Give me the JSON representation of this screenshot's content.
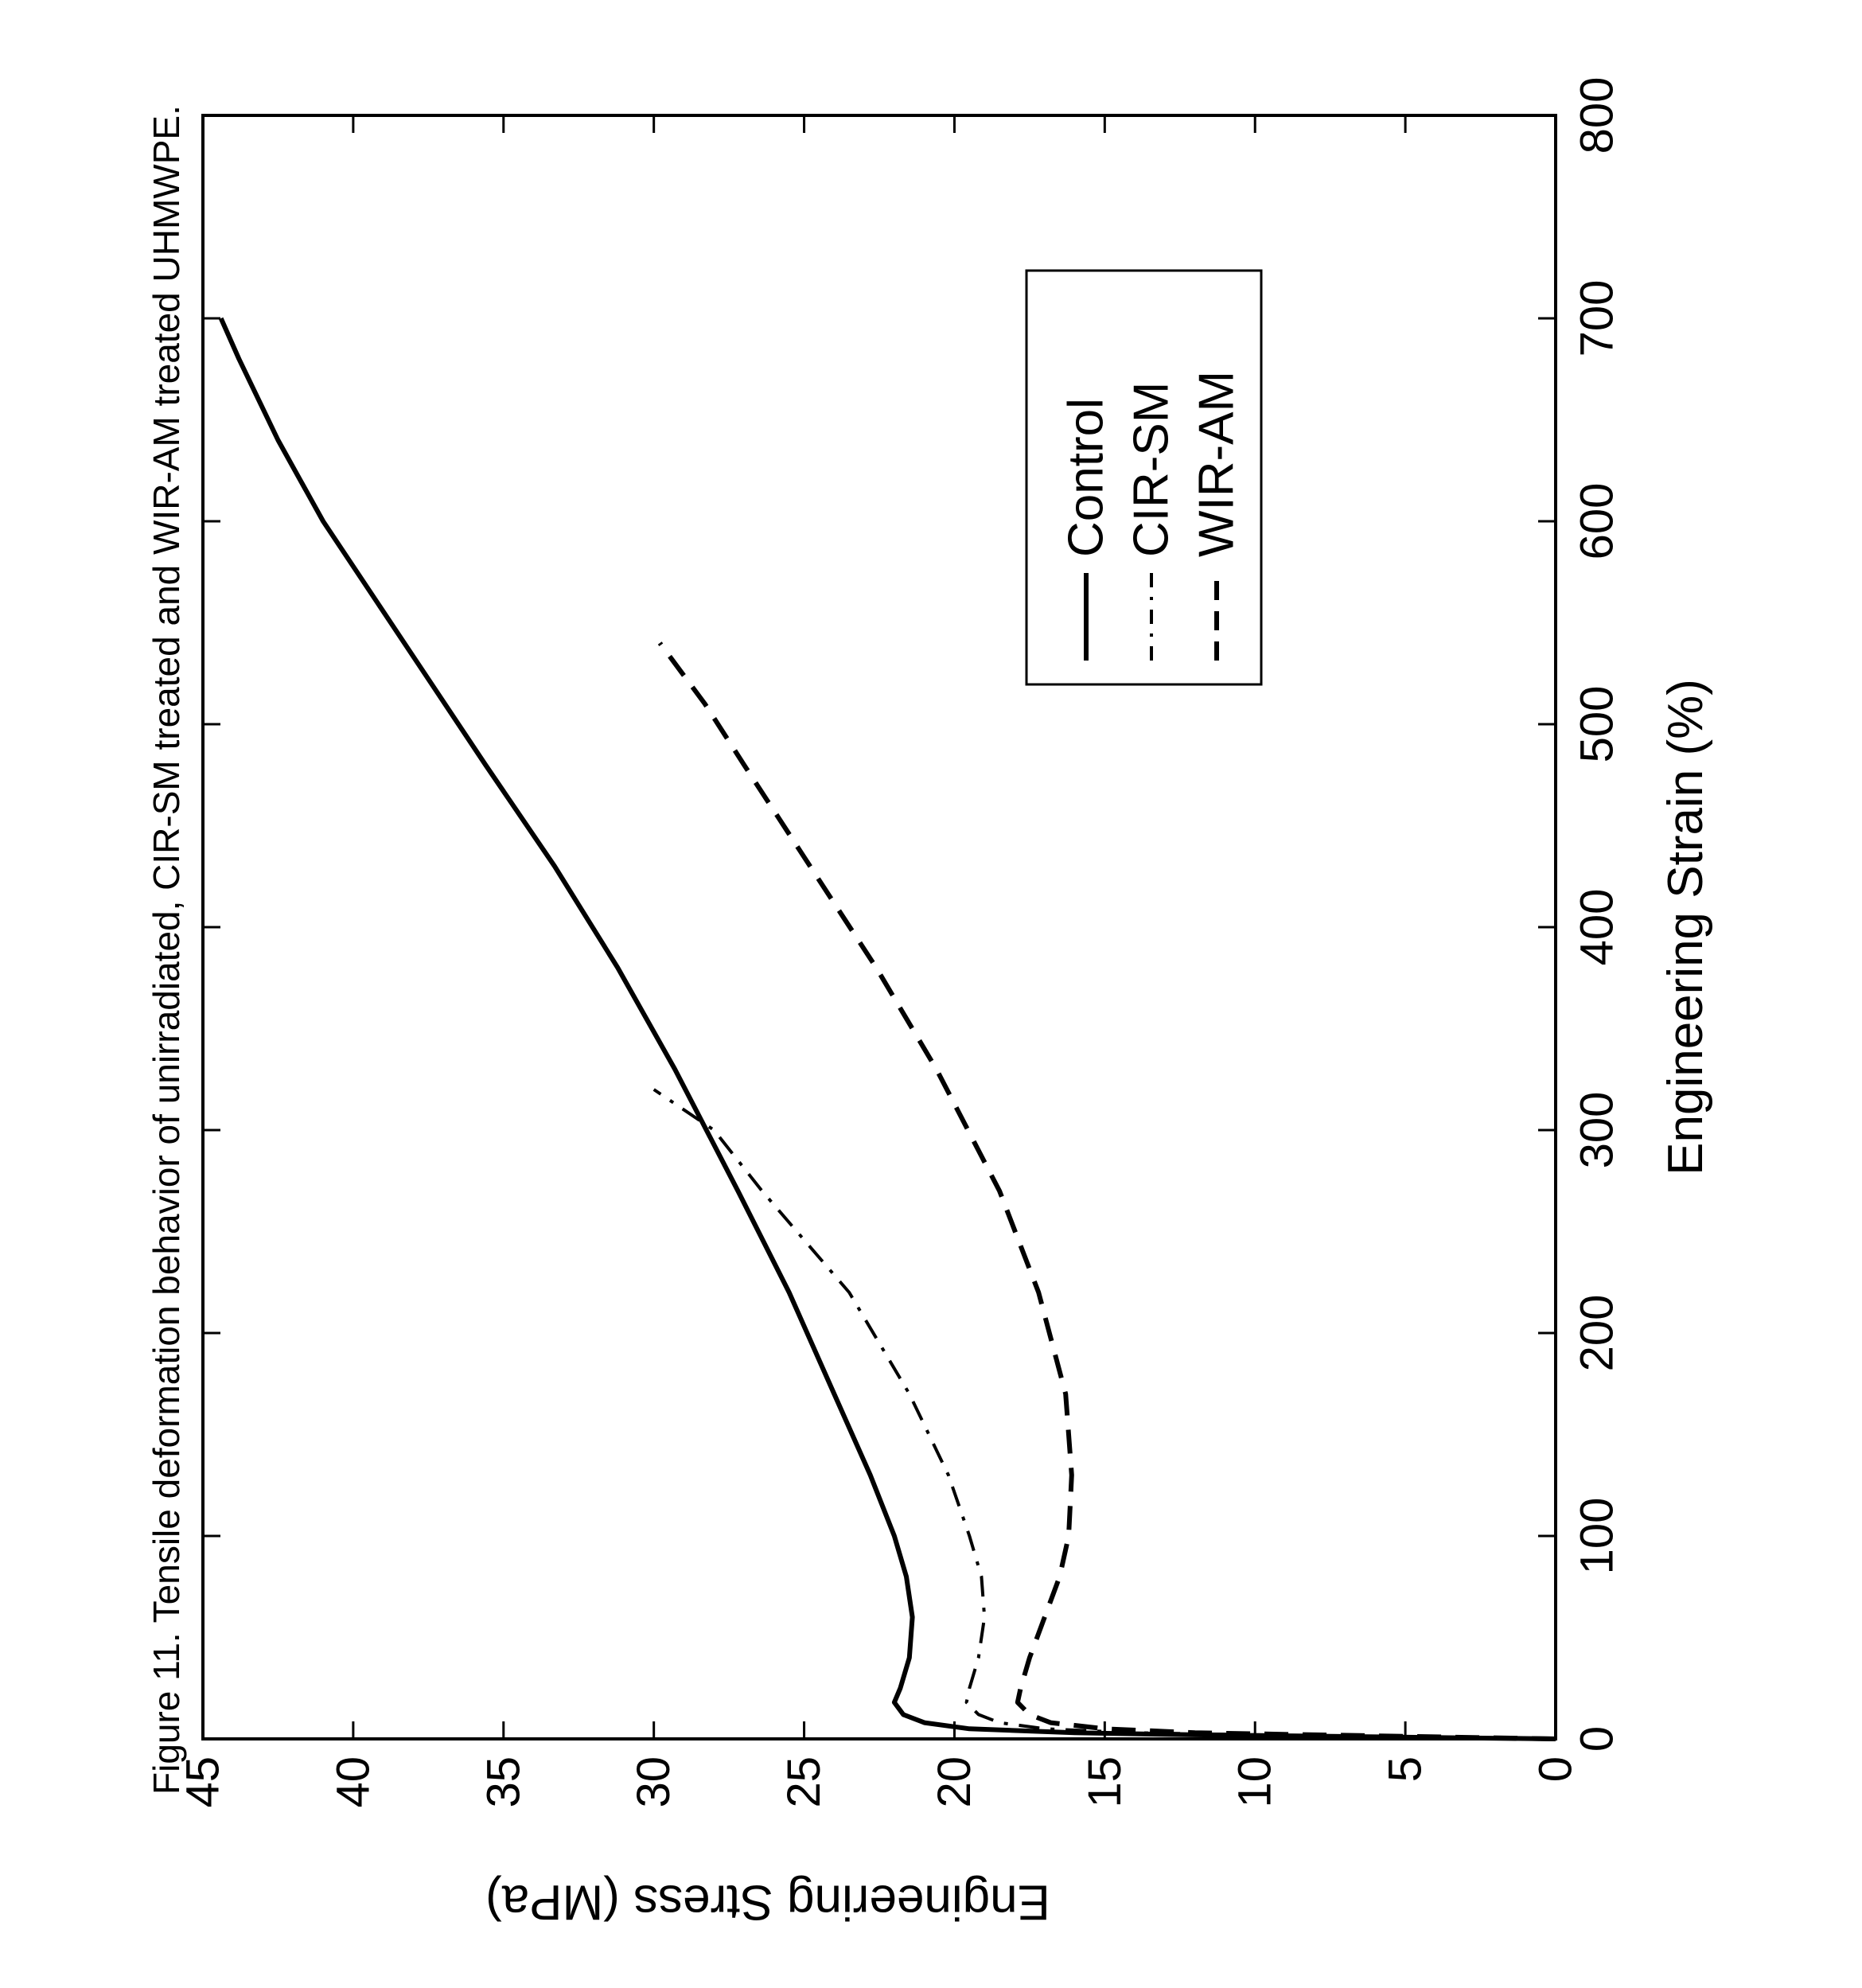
{
  "chart_data": {
    "type": "line",
    "title": "Figure 11. Tensile deformation behavior of unirradiated, CIR-SM treated and WIR-AM treated UHMWPE.",
    "xlabel": "Engineering Strain (%)",
    "ylabel": "Engineering Stress (MPa)",
    "xlim": [
      0,
      800
    ],
    "ylim": [
      0,
      45
    ],
    "x_ticks": [
      "0",
      "100",
      "200",
      "300",
      "400",
      "500",
      "600",
      "700",
      "800"
    ],
    "y_ticks": [
      "0",
      "5",
      "10",
      "15",
      "20",
      "25",
      "30",
      "35",
      "40",
      "45"
    ],
    "grid": false,
    "legend_position": "top-right",
    "orientation": "rotated 90 degrees clockwise",
    "series": [
      {
        "name": "Control",
        "line_style": "solid",
        "points": [
          [
            0,
            0
          ],
          [
            1,
            6
          ],
          [
            2,
            12
          ],
          [
            3,
            16
          ],
          [
            5,
            19.5
          ],
          [
            8,
            21
          ],
          [
            12,
            21.7
          ],
          [
            18,
            22
          ],
          [
            25,
            21.8
          ],
          [
            40,
            21.5
          ],
          [
            60,
            21.4
          ],
          [
            80,
            21.6
          ],
          [
            100,
            22
          ],
          [
            130,
            22.8
          ],
          [
            170,
            24
          ],
          [
            220,
            25.5
          ],
          [
            270,
            27.2
          ],
          [
            330,
            29.3
          ],
          [
            380,
            31.2
          ],
          [
            430,
            33.3
          ],
          [
            480,
            35.6
          ],
          [
            520,
            37.4
          ],
          [
            560,
            39.2
          ],
          [
            600,
            41
          ],
          [
            640,
            42.5
          ],
          [
            680,
            43.8
          ],
          [
            700,
            44.4
          ]
        ]
      },
      {
        "name": "CIR-SM",
        "line_style": "dash-dot",
        "points": [
          [
            0,
            0
          ],
          [
            1,
            5
          ],
          [
            2,
            10
          ],
          [
            3,
            14
          ],
          [
            5,
            17
          ],
          [
            8,
            18.5
          ],
          [
            12,
            19.2
          ],
          [
            18,
            19.6
          ],
          [
            25,
            19.5
          ],
          [
            40,
            19.2
          ],
          [
            60,
            19
          ],
          [
            80,
            19.1
          ],
          [
            100,
            19.5
          ],
          [
            130,
            20.2
          ],
          [
            170,
            21.5
          ],
          [
            220,
            23.5
          ],
          [
            270,
            26.4
          ],
          [
            300,
            28
          ],
          [
            320,
            30
          ]
        ]
      },
      {
        "name": "WIR-AM",
        "line_style": "dashed",
        "points": [
          [
            0,
            0
          ],
          [
            1,
            4
          ],
          [
            2,
            8
          ],
          [
            3,
            12
          ],
          [
            5,
            15
          ],
          [
            8,
            16.8
          ],
          [
            12,
            17.5
          ],
          [
            18,
            17.9
          ],
          [
            25,
            17.8
          ],
          [
            40,
            17.5
          ],
          [
            60,
            17
          ],
          [
            80,
            16.5
          ],
          [
            100,
            16.2
          ],
          [
            130,
            16.1
          ],
          [
            170,
            16.3
          ],
          [
            220,
            17.2
          ],
          [
            270,
            18.5
          ],
          [
            330,
            20.6
          ],
          [
            380,
            22.6
          ],
          [
            430,
            24.8
          ],
          [
            480,
            27
          ],
          [
            510,
            28.3
          ],
          [
            540,
            29.8
          ]
        ]
      }
    ]
  }
}
